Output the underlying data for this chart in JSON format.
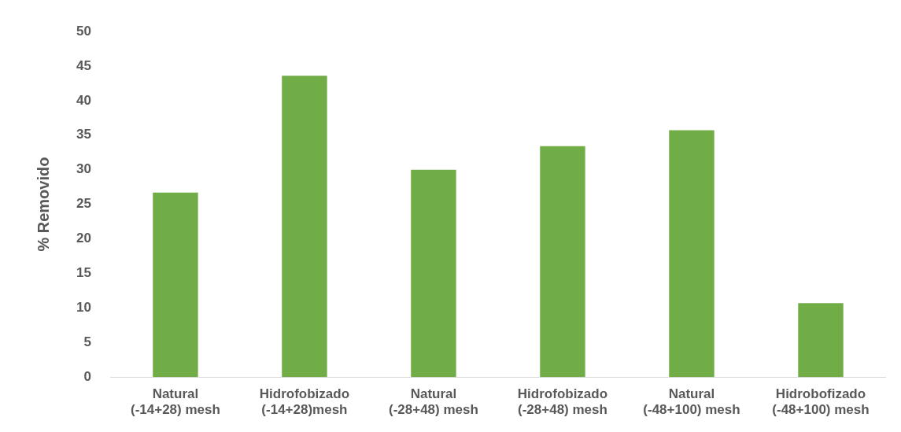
{
  "chart_data": {
    "type": "bar",
    "ylabel": "% Removido",
    "categories": [
      "Natural\n(-14+28) mesh",
      "Hidrofobizado\n(-14+28)mesh",
      "Natural\n(-28+48) mesh",
      "Hidrofobizado\n(-28+48) mesh",
      "Natural\n(-48+100) mesh",
      "Hidrobofizado\n(-48+100) mesh"
    ],
    "values": [
      26.7,
      43.6,
      30,
      33.4,
      35.7,
      10.7
    ],
    "color": "#70ad47",
    "ylim": [
      0,
      50
    ],
    "yticks": [
      0,
      5,
      10,
      15,
      20,
      25,
      30,
      35,
      40,
      45,
      50
    ],
    "grid": false,
    "legend": false
  }
}
